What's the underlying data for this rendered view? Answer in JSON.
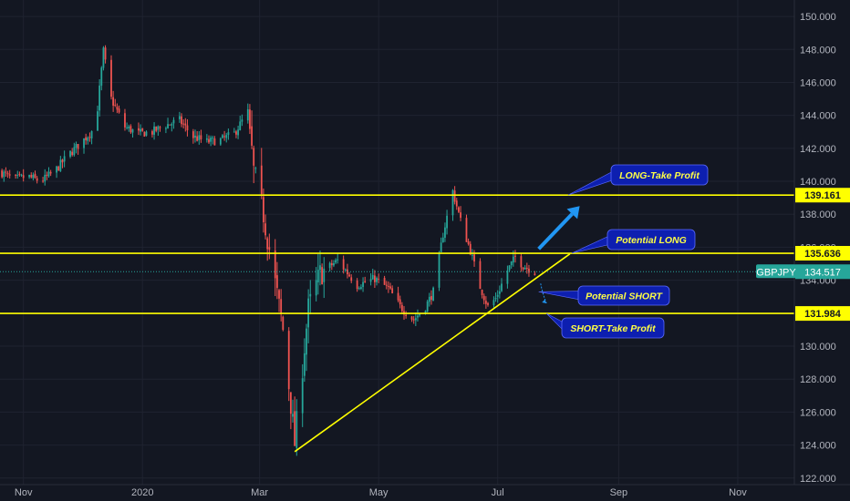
{
  "chart_data": {
    "type": "candlestick",
    "symbol": "GBPJPY",
    "last_price": "134.517",
    "y_range": [
      121.6,
      151.0
    ],
    "y_ticks": [
      "122.000",
      "124.000",
      "126.000",
      "128.000",
      "130.000",
      "132.000",
      "134.000",
      "136.000",
      "138.000",
      "140.000",
      "142.000",
      "144.000",
      "146.000",
      "148.000",
      "150.000"
    ],
    "x_range": [
      "2019-10-20",
      "2020-11-30"
    ],
    "x_ticks": [
      {
        "label": "Nov",
        "date": "2019-11-01"
      },
      {
        "label": "2020",
        "date": "2020-01-01"
      },
      {
        "label": "Mar",
        "date": "2020-03-01"
      },
      {
        "label": "May",
        "date": "2020-05-01"
      },
      {
        "label": "Jul",
        "date": "2020-07-01"
      },
      {
        "label": "Sep",
        "date": "2020-09-01"
      },
      {
        "label": "Nov",
        "date": "2020-11-01"
      }
    ],
    "path_points": [
      [
        "2019-10-20",
        140.6
      ],
      [
        "2019-10-27",
        140.1
      ],
      [
        "2019-11-03",
        140.3
      ],
      [
        "2019-11-10",
        140.0
      ],
      [
        "2019-11-17",
        140.6
      ],
      [
        "2019-11-24",
        141.6
      ],
      [
        "2019-12-01",
        142.4
      ],
      [
        "2019-12-08",
        143.3
      ],
      [
        "2019-12-12",
        147.9
      ],
      [
        "2019-12-16",
        145.0
      ],
      [
        "2019-12-23",
        143.3
      ],
      [
        "2019-12-30",
        142.9
      ],
      [
        "2020-01-06",
        143.0
      ],
      [
        "2020-01-13",
        143.4
      ],
      [
        "2020-01-20",
        143.7
      ],
      [
        "2020-01-27",
        142.7
      ],
      [
        "2020-02-03",
        142.4
      ],
      [
        "2020-02-10",
        142.5
      ],
      [
        "2020-02-17",
        142.9
      ],
      [
        "2020-02-24",
        144.2
      ],
      [
        "2020-02-27",
        140.6
      ],
      [
        "2020-03-03",
        138.0
      ],
      [
        "2020-03-09",
        133.8
      ],
      [
        "2020-03-13",
        131.0
      ],
      [
        "2020-03-17",
        126.5
      ],
      [
        "2020-03-19",
        124.1
      ],
      [
        "2020-03-23",
        128.8
      ],
      [
        "2020-03-26",
        132.3
      ],
      [
        "2020-04-01",
        134.4
      ],
      [
        "2020-04-10",
        135.2
      ],
      [
        "2020-04-20",
        133.7
      ],
      [
        "2020-04-29",
        134.1
      ],
      [
        "2020-05-06",
        133.5
      ],
      [
        "2020-05-12",
        132.4
      ],
      [
        "2020-05-19",
        131.6
      ],
      [
        "2020-05-25",
        132.4
      ],
      [
        "2020-05-29",
        133.3
      ],
      [
        "2020-06-03",
        136.8
      ],
      [
        "2020-06-08",
        139.4
      ],
      [
        "2020-06-12",
        137.6
      ],
      [
        "2020-06-17",
        135.8
      ],
      [
        "2020-06-22",
        133.6
      ],
      [
        "2020-06-26",
        132.4
      ],
      [
        "2020-06-30",
        132.9
      ],
      [
        "2020-07-06",
        134.6
      ],
      [
        "2020-07-10",
        135.4
      ],
      [
        "2020-07-14",
        134.9
      ],
      [
        "2020-07-20",
        134.5
      ]
    ],
    "horizontal_levels": [
      {
        "value": 139.161,
        "label": "139.161"
      },
      {
        "value": 135.636,
        "label": "135.636"
      },
      {
        "value": 131.984,
        "label": "131.984"
      }
    ],
    "trendline": {
      "start": [
        "2020-03-19",
        123.6
      ],
      "end": [
        "2020-08-07",
        135.6
      ]
    },
    "annotations": [
      {
        "text": "LONG-Take Profit",
        "anchor": [
          "2020-08-06",
          139.16
        ]
      },
      {
        "text": "Potential LONG",
        "anchor": [
          "2020-08-08",
          135.64
        ]
      },
      {
        "text": "Potential SHORT",
        "anchor": [
          "2020-07-22",
          133.3
        ]
      },
      {
        "text": "SHORT-Take Profit",
        "anchor": [
          "2020-07-26",
          131.98
        ]
      }
    ],
    "arrows": [
      {
        "direction": "up",
        "from": [
          "2020-07-22",
          135.9
        ],
        "to": [
          "2020-08-12",
          138.5
        ]
      },
      {
        "direction": "down",
        "from": [
          "2020-07-23",
          133.8
        ],
        "to": [
          "2020-07-26",
          132.6
        ]
      }
    ],
    "grid": true,
    "colors": {
      "background": "#131722",
      "up": "#26a69a",
      "down": "#ef5350",
      "level": "#ffff00",
      "annotation_fill": "#0d1fb0",
      "annotation_text": "#ffff44",
      "arrow": "#2196f3",
      "last_price_badge": "#26a69a"
    }
  }
}
